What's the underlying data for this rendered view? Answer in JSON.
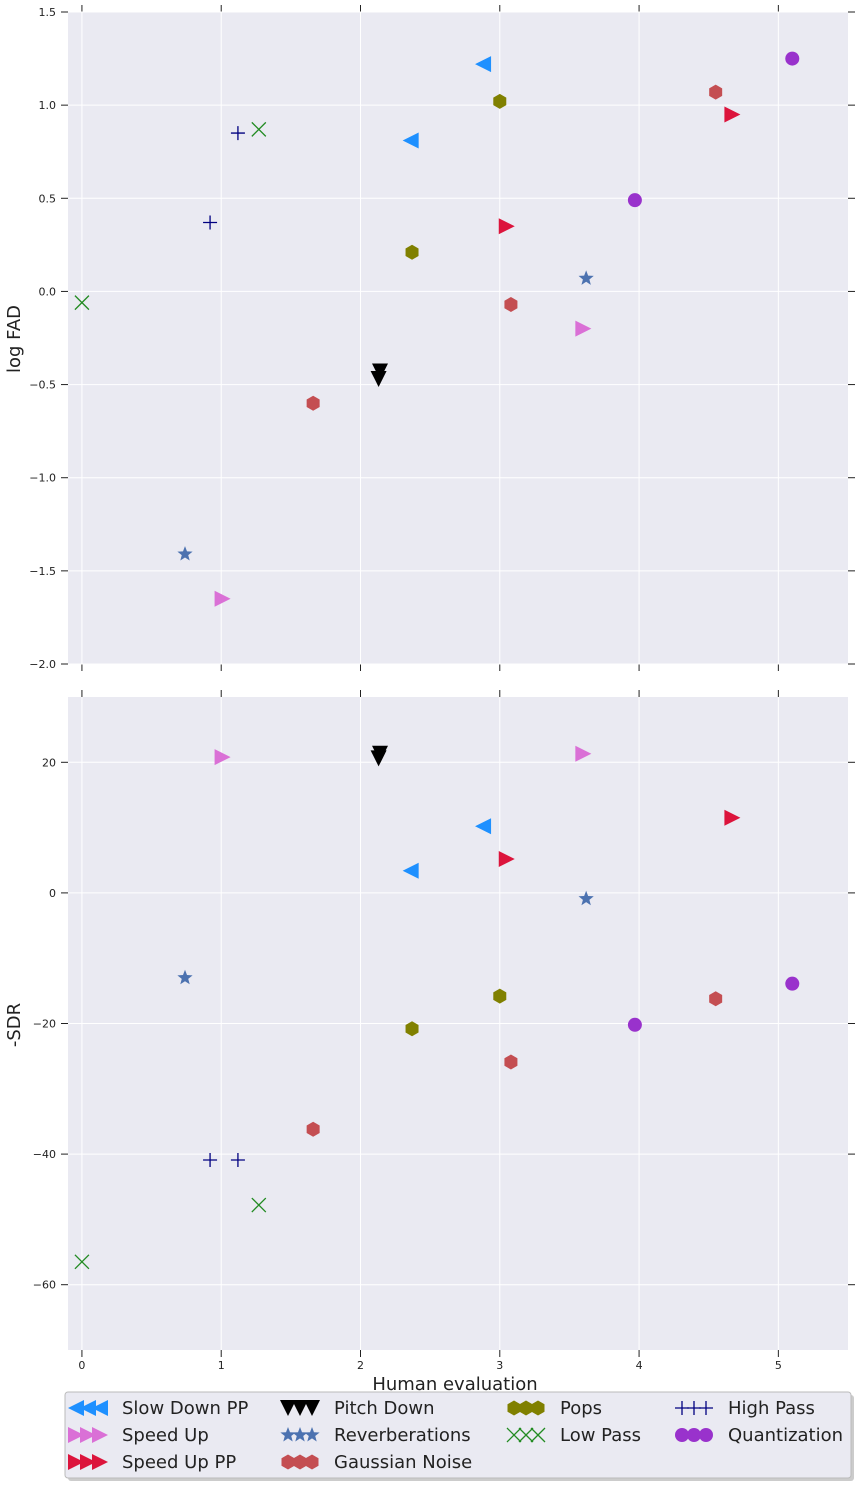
{
  "chart_data": {
    "type": "scatter",
    "xlabel": "Human evaluation",
    "xlim": [
      -0.1,
      5.5
    ],
    "xticks": [
      "0",
      "1",
      "2",
      "3",
      "4",
      "5"
    ],
    "grid": true,
    "legend_position": "bottom",
    "legend": [
      {
        "name": "Slow Down PP",
        "marker": "triangle-left",
        "color": "#1e90ff"
      },
      {
        "name": "Speed Up",
        "marker": "triangle-right",
        "color": "#da70d6"
      },
      {
        "name": "Speed Up PP",
        "marker": "triangle-right",
        "color": "#dc143c"
      },
      {
        "name": "Pitch Down",
        "marker": "triangle-down",
        "color": "#000000"
      },
      {
        "name": "Reverberations",
        "marker": "star",
        "color": "#4c72b0"
      },
      {
        "name": "Gaussian Noise",
        "marker": "hexagon",
        "color": "#c44e52"
      },
      {
        "name": "Pops",
        "marker": "hexagon",
        "color": "#808000"
      },
      {
        "name": "Low Pass",
        "marker": "x",
        "color": "#228b22"
      },
      {
        "name": "High Pass",
        "marker": "plus",
        "color": "#000080"
      },
      {
        "name": "Quantization",
        "marker": "circle",
        "color": "#9932cc"
      }
    ],
    "panels": [
      {
        "ylabel": "log FAD",
        "ylim": [
          -2.0,
          1.5
        ],
        "yticks": [
          {
            "value": 1.5,
            "label": "1.5"
          },
          {
            "value": 1.0,
            "label": "1.0"
          },
          {
            "value": 0.5,
            "label": "0.5"
          },
          {
            "value": 0.0,
            "label": "0.0"
          },
          {
            "value": -0.5,
            "label": "−0.5"
          },
          {
            "value": -1.0,
            "label": "−1.0"
          },
          {
            "value": -1.5,
            "label": "−1.5"
          },
          {
            "value": -2.0,
            "label": "−2.0"
          }
        ],
        "series": [
          {
            "name": "Slow Down PP",
            "points": [
              [
                2.88,
                1.22
              ],
              [
                2.36,
                0.81
              ]
            ]
          },
          {
            "name": "Speed Up",
            "points": [
              [
                1.01,
                -1.65
              ],
              [
                3.6,
                -0.2
              ]
            ]
          },
          {
            "name": "Speed Up PP",
            "points": [
              [
                3.05,
                0.35
              ],
              [
                4.67,
                0.95
              ]
            ]
          },
          {
            "name": "Pitch Down",
            "points": [
              [
                2.14,
                -0.43
              ],
              [
                2.13,
                -0.47
              ]
            ]
          },
          {
            "name": "Reverberations",
            "points": [
              [
                0.74,
                -1.41
              ],
              [
                3.62,
                0.07
              ]
            ]
          },
          {
            "name": "Gaussian Noise",
            "points": [
              [
                1.66,
                -0.6
              ],
              [
                3.08,
                -0.07
              ],
              [
                4.55,
                1.07
              ]
            ]
          },
          {
            "name": "Pops",
            "points": [
              [
                2.37,
                0.21
              ],
              [
                3.0,
                1.02
              ]
            ]
          },
          {
            "name": "Low Pass",
            "points": [
              [
                0.0,
                -0.06
              ],
              [
                1.27,
                0.87
              ]
            ]
          },
          {
            "name": "High Pass",
            "points": [
              [
                0.92,
                0.37
              ],
              [
                1.12,
                0.85
              ]
            ]
          },
          {
            "name": "Quantization",
            "points": [
              [
                3.97,
                0.49
              ],
              [
                5.1,
                1.25
              ]
            ]
          }
        ]
      },
      {
        "ylabel": "-SDR",
        "ylim": [
          -70,
          30
        ],
        "yticks": [
          {
            "value": 20,
            "label": "20"
          },
          {
            "value": 0,
            "label": "0"
          },
          {
            "value": -20,
            "label": "−20"
          },
          {
            "value": -40,
            "label": "−40"
          },
          {
            "value": -60,
            "label": "−60"
          }
        ],
        "series": [
          {
            "name": "Slow Down PP",
            "points": [
              [
                2.88,
                10.2
              ],
              [
                2.36,
                3.4
              ]
            ]
          },
          {
            "name": "Speed Up",
            "points": [
              [
                1.01,
                20.8
              ],
              [
                3.6,
                21.3
              ]
            ]
          },
          {
            "name": "Speed Up PP",
            "points": [
              [
                3.05,
                5.2
              ],
              [
                4.67,
                11.5
              ]
            ]
          },
          {
            "name": "Pitch Down",
            "points": [
              [
                2.14,
                21.3
              ],
              [
                2.13,
                20.6
              ]
            ]
          },
          {
            "name": "Reverberations",
            "points": [
              [
                0.74,
                -13.0
              ],
              [
                3.62,
                -0.9
              ]
            ]
          },
          {
            "name": "Gaussian Noise",
            "points": [
              [
                1.66,
                -36.2
              ],
              [
                3.08,
                -25.9
              ],
              [
                4.55,
                -16.2
              ]
            ]
          },
          {
            "name": "Pops",
            "points": [
              [
                2.37,
                -20.8
              ],
              [
                3.0,
                -15.8
              ]
            ]
          },
          {
            "name": "Low Pass",
            "points": [
              [
                0.0,
                -56.5
              ],
              [
                1.27,
                -47.8
              ]
            ]
          },
          {
            "name": "High Pass",
            "points": [
              [
                0.92,
                -40.9
              ],
              [
                1.12,
                -40.9
              ]
            ]
          },
          {
            "name": "Quantization",
            "points": [
              [
                3.97,
                -20.2
              ],
              [
                5.1,
                -13.9
              ]
            ]
          }
        ]
      }
    ]
  }
}
